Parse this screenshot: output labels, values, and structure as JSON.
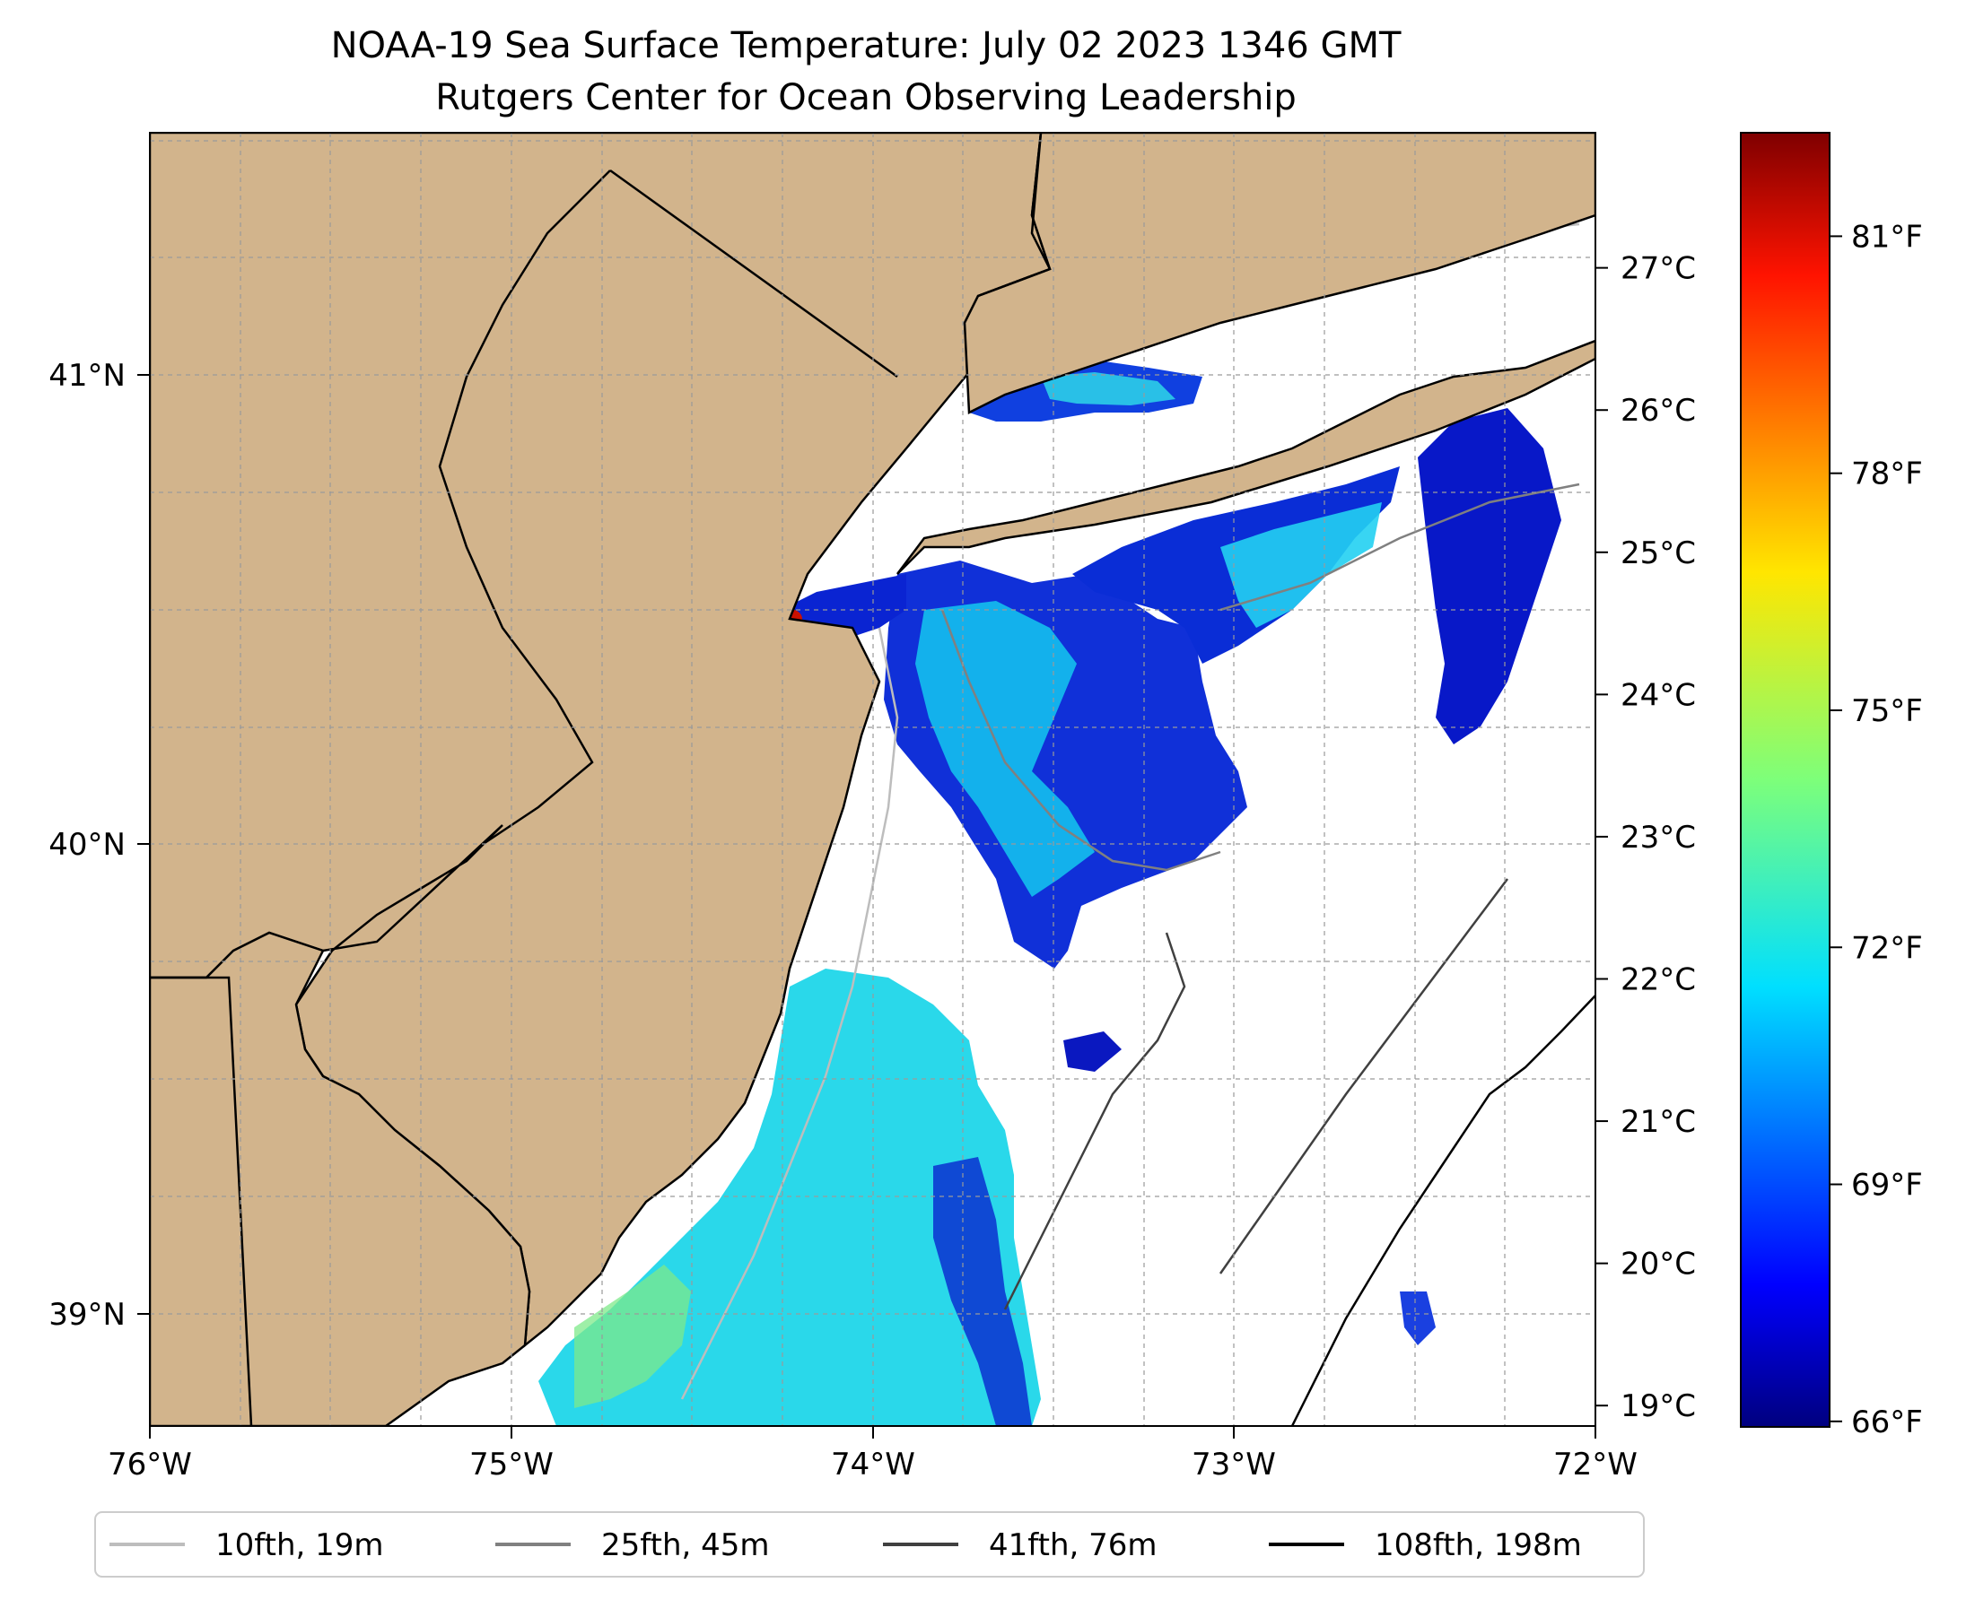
{
  "title": {
    "line1": "NOAA-19 Sea Surface Temperature: July 02 2023 1346 GMT",
    "line2": "Rutgers Center for Ocean Observing Leadership"
  },
  "map": {
    "lon_range": [
      -76,
      -72
    ],
    "lat_range": [
      38.73,
      41.55
    ],
    "x_ticks": [
      {
        "lon": -76,
        "label": "76°W"
      },
      {
        "lon": -75,
        "label": "75°W"
      },
      {
        "lon": -74,
        "label": "74°W"
      },
      {
        "lon": -73,
        "label": "73°W"
      },
      {
        "lon": -72,
        "label": "72°W"
      }
    ],
    "y_ticks": [
      {
        "lat": 41,
        "label": "41°N"
      },
      {
        "lat": 40,
        "label": "40°N"
      },
      {
        "lat": 39,
        "label": "39°N"
      }
    ],
    "grid": "dashed",
    "land_color": "#d2b48c",
    "ocean_color": "#ffffff"
  },
  "colorbar": {
    "colormap": "jet",
    "celsius_range": [
      18.85,
      27.95
    ],
    "celsius_ticks": [
      {
        "value": 19,
        "label": "19°C"
      },
      {
        "value": 20,
        "label": "20°C"
      },
      {
        "value": 21,
        "label": "21°C"
      },
      {
        "value": 22,
        "label": "22°C"
      },
      {
        "value": 23,
        "label": "23°C"
      },
      {
        "value": 24,
        "label": "24°C"
      },
      {
        "value": 25,
        "label": "25°C"
      },
      {
        "value": 26,
        "label": "26°C"
      },
      {
        "value": 27,
        "label": "27°C"
      }
    ],
    "fahrenheit_ticks": [
      {
        "value": 66,
        "label": "66°F"
      },
      {
        "value": 69,
        "label": "69°F"
      },
      {
        "value": 72,
        "label": "72°F"
      },
      {
        "value": 75,
        "label": "75°F"
      },
      {
        "value": 78,
        "label": "78°F"
      },
      {
        "value": 81,
        "label": "81°F"
      }
    ]
  },
  "legend": {
    "placement": "bottom",
    "items": [
      {
        "label": "10fth, 19m",
        "color": "#bdbdbd"
      },
      {
        "label": "25fth, 45m",
        "color": "#808080"
      },
      {
        "label": "41fth, 76m",
        "color": "#404040"
      },
      {
        "label": "108fth, 198m",
        "color": "#000000"
      }
    ]
  }
}
